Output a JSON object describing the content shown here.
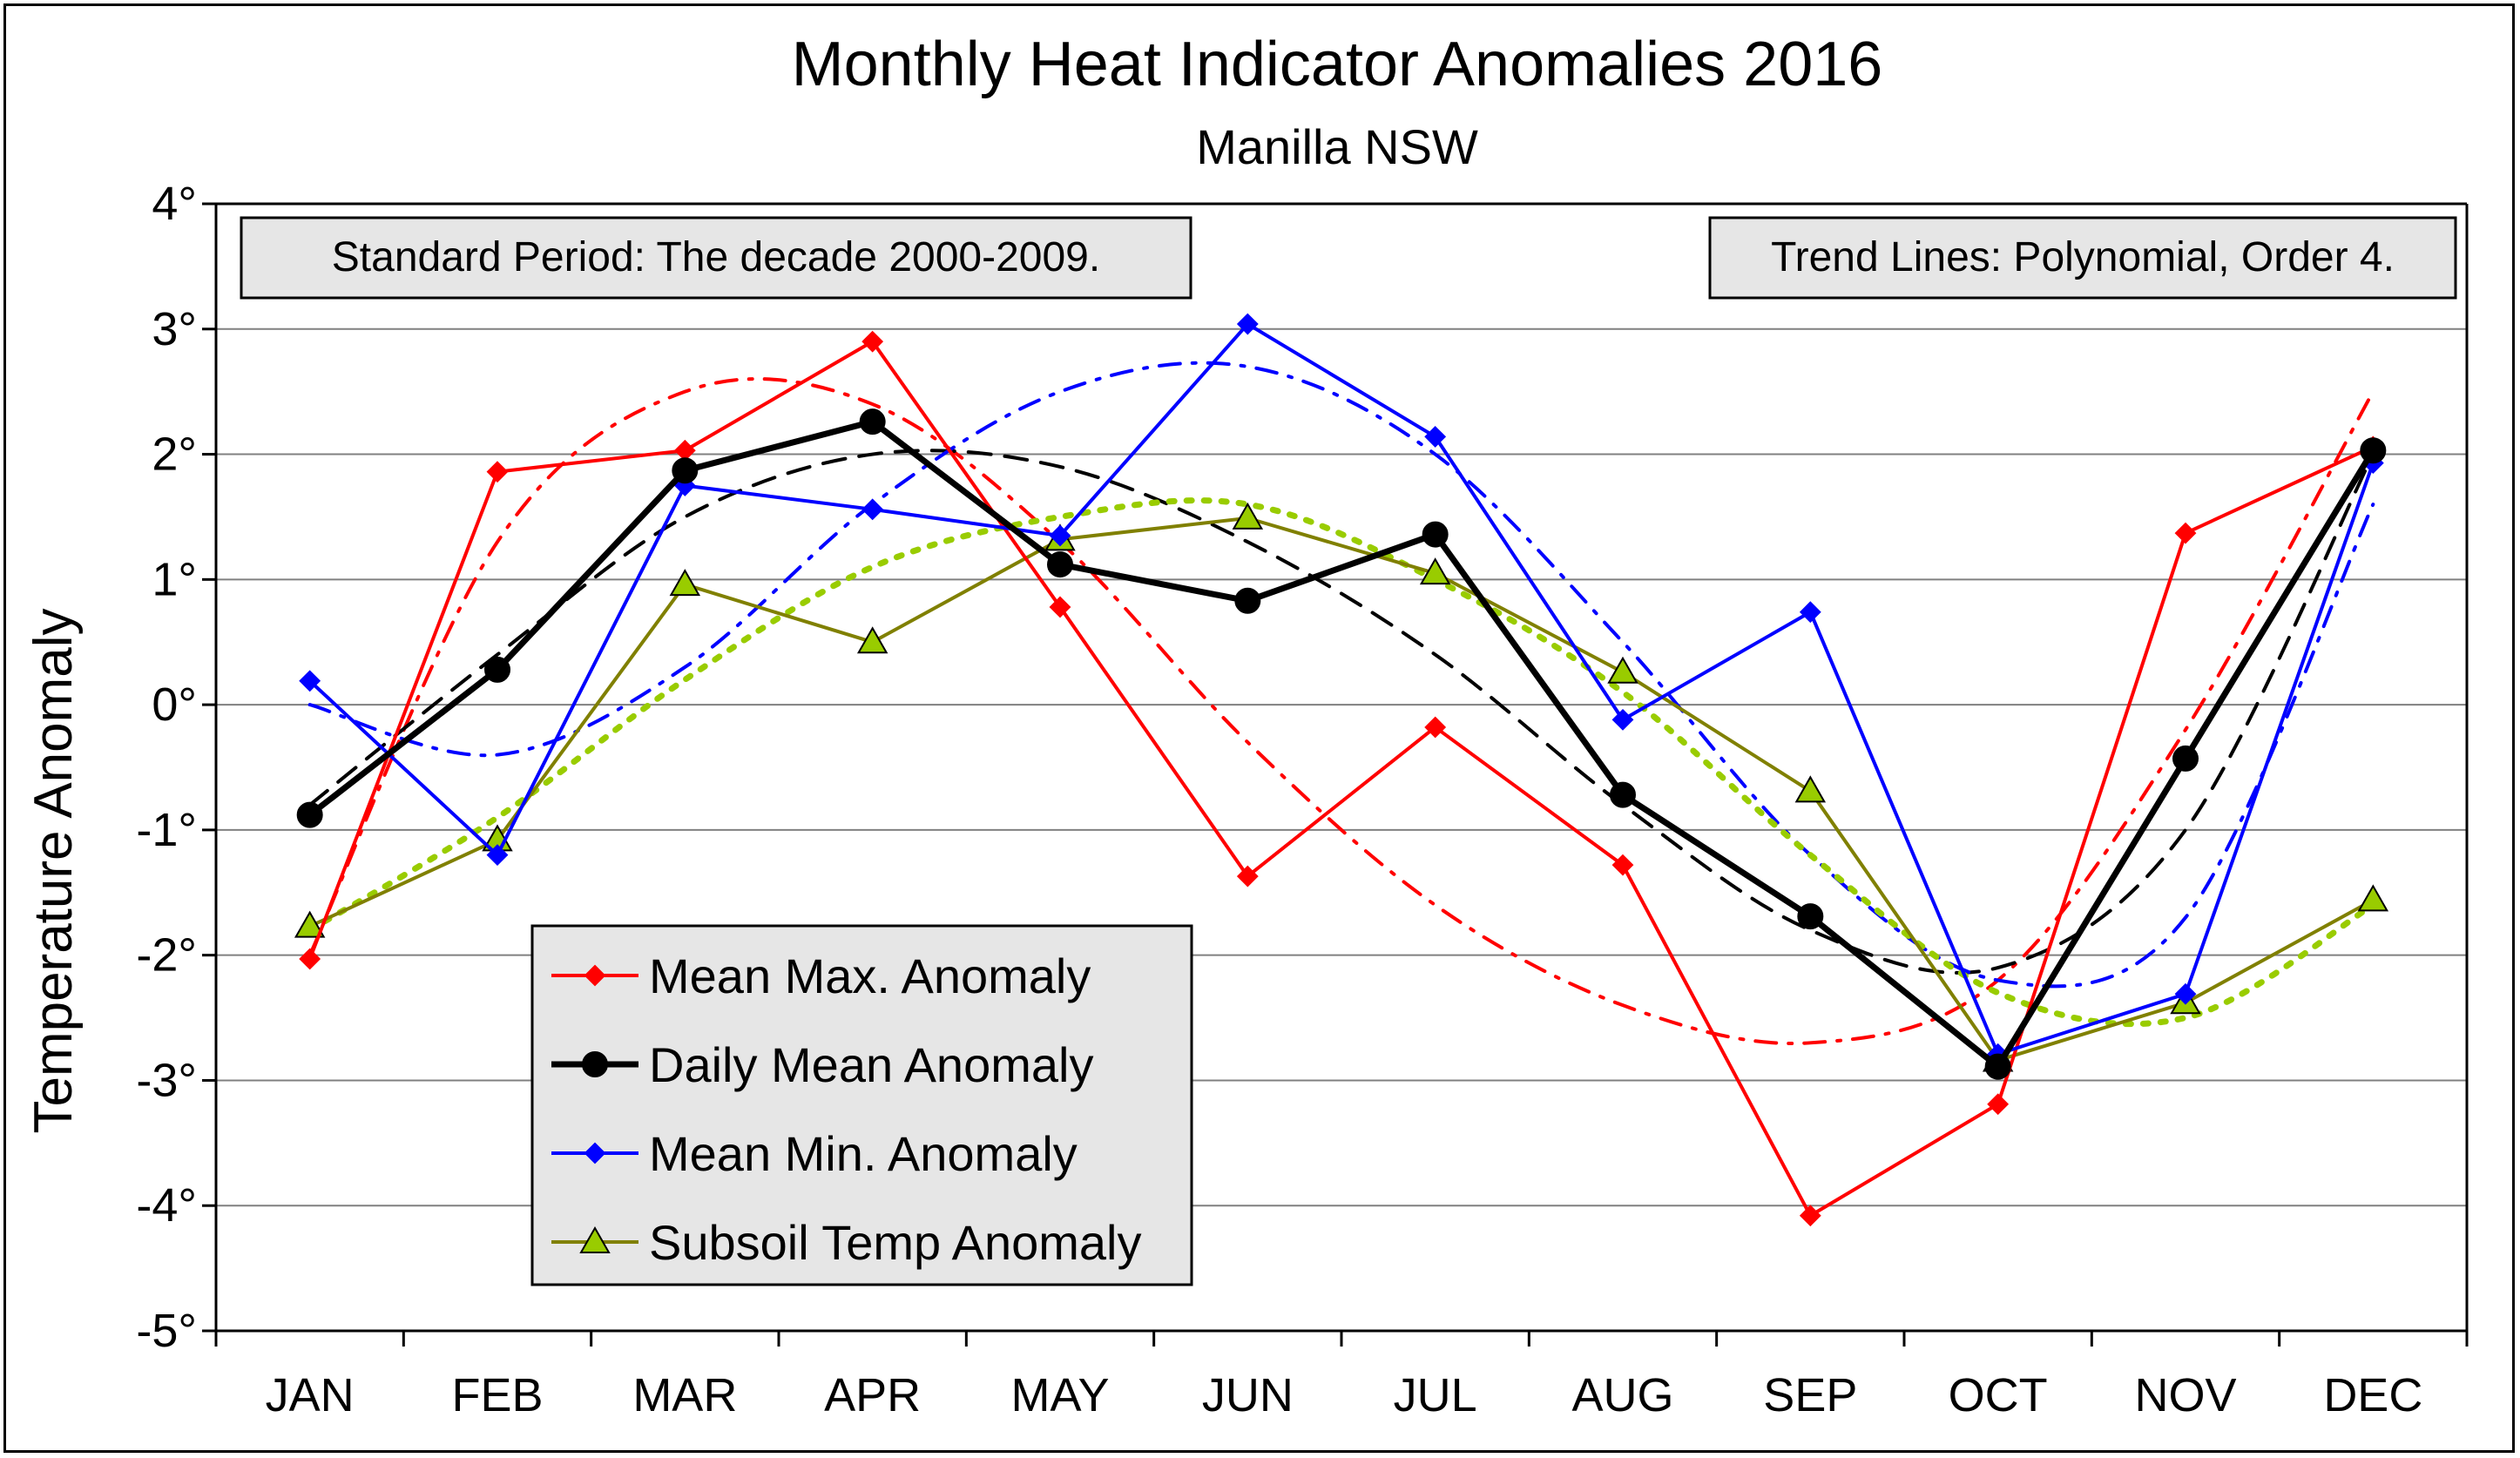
{
  "chart_data": {
    "type": "line",
    "title": "Monthly Heat Indicator Anomalies 2016",
    "subtitle": "Manilla NSW",
    "ylabel": "Temperature Anomaly",
    "xlabel": "",
    "ylim": [
      -5,
      4
    ],
    "y_tick_labels": [
      "4°",
      "3°",
      "2°",
      "1°",
      "0°",
      "-1°",
      "-2°",
      "-3°",
      "-4°",
      "-5°"
    ],
    "y_tick_values": [
      4,
      3,
      2,
      1,
      0,
      -1,
      -2,
      -3,
      -4,
      -5
    ],
    "categories": [
      "JAN",
      "FEB",
      "MAR",
      "APR",
      "MAY",
      "JUN",
      "JUL",
      "AUG",
      "SEP",
      "OCT",
      "NOV",
      "DEC"
    ],
    "grid": "horizontal",
    "legend_position": "bottom-left",
    "notes": {
      "left": "Standard Period: The decade 2000-2009.",
      "right": "Trend Lines: Polynomial, Order 4."
    },
    "series": [
      {
        "name": "Mean Max. Anomaly",
        "color": "#ff0000",
        "marker": "diamond",
        "values": [
          -2.03,
          1.86,
          2.03,
          2.9,
          0.78,
          -1.37,
          -0.18,
          -1.28,
          -4.08,
          -3.19,
          1.37,
          2.06
        ],
        "trend": [
          -2.0,
          1.3,
          2.5,
          2.4,
          1.3,
          -0.3,
          -1.6,
          -2.4,
          -2.7,
          -2.2,
          -0.2,
          2.5
        ]
      },
      {
        "name": "Daily Mean Anomaly",
        "color": "#000000",
        "marker": "circle",
        "values": [
          -0.88,
          0.28,
          1.87,
          2.26,
          1.12,
          0.83,
          1.36,
          -0.72,
          -1.69,
          -2.89,
          -0.43,
          2.03
        ],
        "trend": [
          -0.8,
          0.4,
          1.5,
          2.0,
          1.9,
          1.3,
          0.4,
          -0.8,
          -1.8,
          -2.1,
          -1.0,
          2.0
        ]
      },
      {
        "name": "Mean Min. Anomaly",
        "color": "#0000ff",
        "marker": "diamond",
        "values": [
          0.19,
          -1.2,
          1.75,
          1.56,
          1.35,
          3.04,
          2.14,
          -0.12,
          0.74,
          -2.79,
          -2.31,
          1.93
        ],
        "trend": [
          0.0,
          -0.4,
          0.3,
          1.6,
          2.5,
          2.7,
          2.0,
          0.5,
          -1.2,
          -2.2,
          -1.7,
          1.6
        ]
      },
      {
        "name": "Subsoil Temp Anomaly",
        "color": "#808000",
        "marker": "triangle",
        "trend_color": "#99cc00",
        "values": [
          -1.77,
          -1.08,
          0.96,
          0.5,
          1.32,
          1.49,
          1.05,
          0.26,
          -0.69,
          -2.84,
          -2.38,
          -1.56
        ],
        "trend": [
          -1.8,
          -0.9,
          0.2,
          1.1,
          1.5,
          1.6,
          1.0,
          0.1,
          -1.2,
          -2.3,
          -2.5,
          -1.6
        ]
      }
    ]
  }
}
